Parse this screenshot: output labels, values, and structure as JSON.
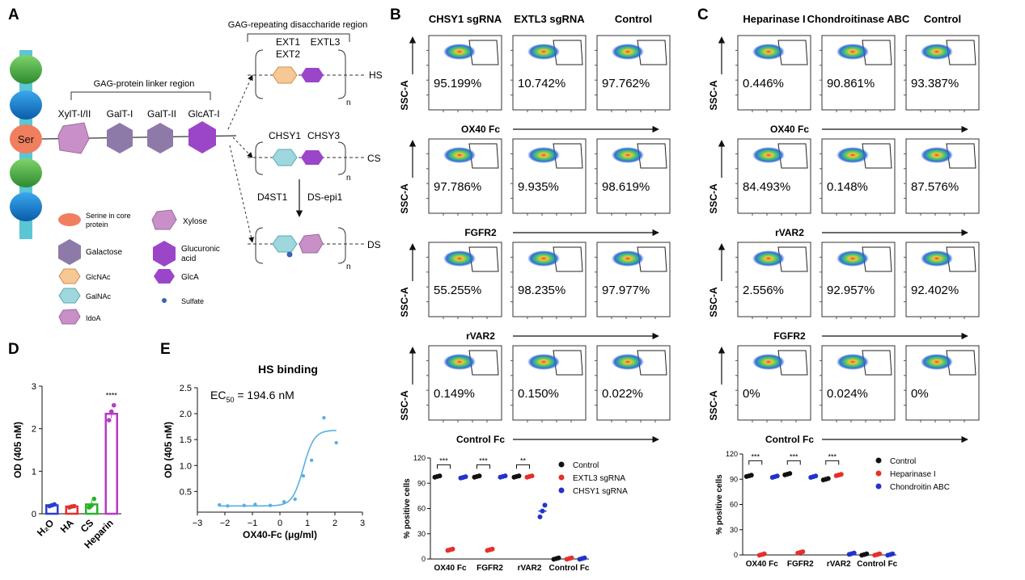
{
  "panel_letters": {
    "A": "A",
    "B": "B",
    "C": "C",
    "D": "D",
    "E": "E"
  },
  "panelA": {
    "core_ser": "Ser",
    "linker_region": "GAG-protein linker region",
    "repeat_region": "GAG-repeating disaccharide region",
    "linker_enzymes": [
      "XylT-I/II",
      "GalT-I",
      "GalT-II",
      "GlcAT-I"
    ],
    "hs_enzymes": [
      "EXT1",
      "EXTL3",
      "EXT2"
    ],
    "cs_enzymes": [
      "CHSY1",
      "CHSY3"
    ],
    "ds_enzymes": [
      "D4ST1",
      "DS-epi1"
    ],
    "chain_labels": {
      "hs": "HS",
      "cs": "CS",
      "ds": "DS"
    },
    "repeat_n": "n",
    "legend": [
      {
        "key": "serine",
        "label": "Serine in core protein",
        "color": "#f07f5f"
      },
      {
        "key": "xylose",
        "label": "Xylose",
        "color": "#c98fc9"
      },
      {
        "key": "galactose",
        "label": "Galactose",
        "color": "#8e7aa8"
      },
      {
        "key": "glucuronic",
        "label": "Glucuronic acid",
        "color": "#9b46c9"
      },
      {
        "key": "glcnac",
        "label": "GlcNAc",
        "color": "#f7c796"
      },
      {
        "key": "glca",
        "label": "GlcA",
        "color": "#9b46c9"
      },
      {
        "key": "galnac",
        "label": "GalNAc",
        "color": "#9ed7de"
      },
      {
        "key": "sulfate",
        "label": "Sulfate",
        "color": "#3b63b0"
      },
      {
        "key": "idoa",
        "label": "IdoA",
        "color": "#c98fc9"
      }
    ]
  },
  "panelB": {
    "columns": [
      "CHSY1 sgRNA",
      "EXTL3 sgRNA",
      "Control"
    ],
    "y_axis": "SSC-A",
    "rows": [
      {
        "ligand": "OX40 Fc",
        "values": [
          "95.199%",
          "10.742%",
          "97.762%"
        ]
      },
      {
        "ligand": "FGFR2",
        "values": [
          "97.786%",
          "9.935%",
          "98.619%"
        ]
      },
      {
        "ligand": "rVAR2",
        "values": [
          "55.255%",
          "98.235%",
          "97.977%"
        ]
      },
      {
        "ligand": "Control Fc",
        "values": [
          "0.149%",
          "0.150%",
          "0.022%"
        ]
      }
    ]
  },
  "panelC": {
    "columns": [
      "Heparinase I",
      "Chondroitinase ABC",
      "Control"
    ],
    "y_axis": "SSC-A",
    "rows": [
      {
        "ligand": "OX40 Fc",
        "values": [
          "0.446%",
          "90.861%",
          "93.387%"
        ]
      },
      {
        "ligand": "rVAR2",
        "values": [
          "84.493%",
          "0.148%",
          "87.576%"
        ]
      },
      {
        "ligand": "FGFR2",
        "values": [
          "2.556%",
          "92.957%",
          "92.402%"
        ]
      },
      {
        "ligand": "Control Fc",
        "values": [
          "0%",
          "0.024%",
          "0%"
        ]
      }
    ]
  },
  "chart_data": [
    {
      "id": "D",
      "type": "bar",
      "ylabel": "OD (405 nM)",
      "ylim": [
        0,
        3
      ],
      "yticks": [
        0,
        1,
        2,
        3
      ],
      "categories": [
        "H2O",
        "HA",
        "CS",
        "Heparin"
      ],
      "values": [
        0.2,
        0.17,
        0.22,
        2.35
      ],
      "errors": [
        0.02,
        0.02,
        0.1,
        0.1
      ],
      "points": [
        [
          0.18,
          0.2,
          0.22
        ],
        [
          0.15,
          0.17,
          0.18
        ],
        [
          0.15,
          0.2,
          0.35
        ],
        [
          2.2,
          2.4,
          2.55
        ]
      ],
      "colors": [
        "#2a3fcc",
        "#e5302b",
        "#27b327",
        "#b83ac8"
      ],
      "significance": "****"
    },
    {
      "id": "E",
      "type": "scatter",
      "title": "HS binding",
      "annotation_prefix": "EC",
      "annotation_sub": "50",
      "annotation_value": " = 194.6 nM",
      "xlabel": "OX40-Fc (μg/ml)",
      "ylabel": "OD (405 nM)",
      "xlim": [
        -3,
        3
      ],
      "ylim": [
        0.1,
        2.5
      ],
      "xticks": [
        -3,
        -2,
        -1,
        0,
        1,
        2,
        3
      ],
      "yticks": [
        0.5,
        1.0,
        1.5,
        2.0,
        2.5
      ],
      "x": [
        -2.2,
        -1.9,
        -1.3,
        -0.9,
        -0.35,
        0.15,
        0.55,
        0.85,
        1.15,
        1.6,
        2.05
      ],
      "y": [
        0.24,
        0.22,
        0.23,
        0.25,
        0.23,
        0.3,
        0.35,
        0.8,
        1.1,
        1.92,
        1.44
      ],
      "fit": {
        "bottom": 0.22,
        "top": 1.68,
        "logEC50": 0.85,
        "hill": 2.2
      },
      "point_color": "#5ab0e0"
    },
    {
      "id": "B",
      "type": "scatter",
      "ylabel": "% positive cells",
      "ylim": [
        0,
        120
      ],
      "yticks": [
        0,
        30,
        60,
        90,
        120
      ],
      "categories": [
        "OX40 Fc",
        "FGFR2",
        "rVAR2",
        "Control Fc"
      ],
      "series": [
        {
          "name": "Control",
          "color": "#111111",
          "values": [
            98,
            98,
            98,
            0.5
          ]
        },
        {
          "name": "EXTL3 sgRNA",
          "color": "#e5302b",
          "values": [
            11,
            11,
            98,
            0.5
          ]
        },
        {
          "name": "CHSY1 sgRNA",
          "color": "#2233cc",
          "values": [
            97,
            98,
            57,
            0.5
          ]
        }
      ],
      "significance": [
        "***",
        "***",
        "**"
      ]
    },
    {
      "id": "C",
      "type": "scatter",
      "ylabel": "% positive cells",
      "ylim": [
        0,
        120
      ],
      "yticks": [
        0,
        30,
        60,
        90,
        120
      ],
      "categories": [
        "OX40 Fc",
        "FGFR2",
        "rVAR2",
        "Control Fc"
      ],
      "series": [
        {
          "name": "Control",
          "color": "#111111",
          "values": [
            94,
            96,
            90,
            0.5
          ]
        },
        {
          "name": "Heparinase I",
          "color": "#e5302b",
          "values": [
            0.5,
            3,
            95,
            0.5
          ]
        },
        {
          "name": "Chondroitin ABC",
          "color": "#2233cc",
          "values": [
            93,
            93,
            1.5,
            0.5
          ]
        }
      ],
      "significance": [
        "***",
        "***",
        "***"
      ]
    }
  ]
}
